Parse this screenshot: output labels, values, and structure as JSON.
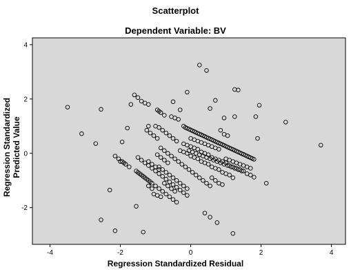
{
  "chart_data": {
    "type": "scatter",
    "title": "Scatterplot",
    "subtitle": "Dependent Variable: BV",
    "xlabel": "Regression Standardized Residual",
    "ylabel": "Regression Standardized Predicted Value",
    "xlim": [
      -4.5,
      4.4
    ],
    "ylim": [
      -3.35,
      4.25
    ],
    "xticks": [
      -4,
      -2,
      0,
      2,
      4
    ],
    "yticks": [
      4,
      2,
      0,
      -2
    ],
    "grid": false,
    "colors": {
      "plot_bg": "#d8d8d8",
      "marker": "#000000"
    },
    "marker": "open-circle",
    "points": [
      [
        -3.5,
        1.7
      ],
      [
        -3.1,
        0.72
      ],
      [
        -2.7,
        0.36
      ],
      [
        -2.55,
        1.62
      ],
      [
        -2.55,
        -2.45
      ],
      [
        -2.3,
        -1.35
      ],
      [
        -2.15,
        -2.85
      ],
      [
        -1.8,
        0.93
      ],
      [
        -1.55,
        -1.95
      ],
      [
        -1.35,
        -2.9
      ],
      [
        -1.5,
        2.05
      ],
      [
        -0.9,
        1.55
      ],
      [
        -0.5,
        1.9
      ],
      [
        0.25,
        3.25
      ],
      [
        0.45,
        3.05
      ],
      [
        -0.1,
        2.25
      ],
      [
        0.55,
        1.65
      ],
      [
        1.25,
        2.35
      ],
      [
        1.35,
        2.33
      ],
      [
        1.25,
        1.35
      ],
      [
        1.85,
        1.35
      ],
      [
        1.95,
        1.77
      ],
      [
        1.9,
        0.55
      ],
      [
        2.15,
        -1.1
      ],
      [
        2.7,
        1.15
      ],
      [
        3.7,
        0.3
      ],
      [
        1.2,
        -2.95
      ],
      [
        0.7,
        1.95
      ],
      [
        0.95,
        1.3
      ],
      [
        0.85,
        0.85
      ],
      [
        0.4,
        -2.2
      ],
      [
        0.55,
        -2.35
      ],
      [
        0.75,
        -2.55
      ],
      [
        -1.95,
        0.42
      ],
      [
        -0.3,
        1.6
      ],
      [
        -0.2,
        1.0
      ],
      [
        -0.15,
        0.95
      ],
      [
        -0.1,
        0.92
      ],
      [
        -0.05,
        0.89
      ],
      [
        0.0,
        0.86
      ],
      [
        0.05,
        0.83
      ],
      [
        0.1,
        0.8
      ],
      [
        0.15,
        0.77
      ],
      [
        0.2,
        0.74
      ],
      [
        0.25,
        0.71
      ],
      [
        0.3,
        0.68
      ],
      [
        0.35,
        0.65
      ],
      [
        0.4,
        0.62
      ],
      [
        0.45,
        0.59
      ],
      [
        0.5,
        0.56
      ],
      [
        0.55,
        0.53
      ],
      [
        0.6,
        0.5
      ],
      [
        0.65,
        0.47
      ],
      [
        0.7,
        0.44
      ],
      [
        0.75,
        0.41
      ],
      [
        0.8,
        0.38
      ],
      [
        0.85,
        0.35
      ],
      [
        0.9,
        0.32
      ],
      [
        0.95,
        0.29
      ],
      [
        1.0,
        0.26
      ],
      [
        1.05,
        0.23
      ],
      [
        1.1,
        0.2
      ],
      [
        1.15,
        0.17
      ],
      [
        1.2,
        0.14
      ],
      [
        1.25,
        0.11
      ],
      [
        1.3,
        0.08
      ],
      [
        1.35,
        0.05
      ],
      [
        1.4,
        0.02
      ],
      [
        1.45,
        -0.01
      ],
      [
        1.5,
        -0.04
      ],
      [
        1.55,
        -0.07
      ],
      [
        1.6,
        -0.1
      ],
      [
        1.65,
        -0.13
      ],
      [
        1.7,
        -0.16
      ],
      [
        1.75,
        -0.19
      ],
      [
        1.8,
        -0.22
      ],
      [
        -0.55,
        1.35
      ],
      [
        -0.45,
        1.3
      ],
      [
        -0.35,
        1.25
      ],
      [
        0.0,
        0.55
      ],
      [
        0.1,
        0.5
      ],
      [
        0.2,
        0.45
      ],
      [
        0.3,
        0.4
      ],
      [
        0.4,
        0.35
      ],
      [
        0.5,
        0.3
      ],
      [
        0.6,
        0.25
      ],
      [
        0.7,
        0.2
      ],
      [
        0.8,
        0.15
      ],
      [
        -1.0,
        1.0
      ],
      [
        -0.9,
        0.95
      ],
      [
        -0.8,
        0.85
      ],
      [
        -0.7,
        0.75
      ],
      [
        -0.6,
        0.65
      ],
      [
        -0.5,
        0.55
      ],
      [
        -0.4,
        0.45
      ],
      [
        -1.6,
        2.15
      ],
      [
        -1.4,
        1.92
      ],
      [
        -1.3,
        1.85
      ],
      [
        -1.2,
        1.8
      ],
      [
        -0.95,
        1.6
      ],
      [
        -0.85,
        1.5
      ],
      [
        -0.75,
        1.4
      ],
      [
        -0.2,
        0.35
      ],
      [
        -0.1,
        0.3
      ],
      [
        0.0,
        0.25
      ],
      [
        0.1,
        0.2
      ],
      [
        0.2,
        0.15
      ],
      [
        0.3,
        0.05
      ],
      [
        0.4,
        0.0
      ],
      [
        0.5,
        -0.05
      ],
      [
        0.6,
        -0.15
      ],
      [
        0.7,
        -0.2
      ],
      [
        0.8,
        -0.25
      ],
      [
        0.9,
        -0.3
      ],
      [
        1.0,
        -0.35
      ],
      [
        1.1,
        -0.45
      ],
      [
        1.2,
        -0.5
      ],
      [
        1.3,
        -0.55
      ],
      [
        1.4,
        -0.6
      ],
      [
        1.5,
        -0.65
      ],
      [
        1.6,
        -0.75
      ],
      [
        1.7,
        -0.8
      ],
      [
        1.8,
        -0.88
      ],
      [
        -0.85,
        0.2
      ],
      [
        -0.75,
        0.1
      ],
      [
        -0.65,
        0.0
      ],
      [
        -0.55,
        -0.1
      ],
      [
        -0.45,
        -0.2
      ],
      [
        -0.35,
        -0.3
      ],
      [
        -0.25,
        -0.4
      ],
      [
        -0.15,
        -0.5
      ],
      [
        -0.05,
        -0.6
      ],
      [
        0.05,
        -0.7
      ],
      [
        0.15,
        -0.8
      ],
      [
        0.25,
        -0.9
      ],
      [
        0.35,
        -1.0
      ],
      [
        0.45,
        -1.1
      ],
      [
        0.55,
        -1.2
      ],
      [
        -0.3,
        0.1
      ],
      [
        -0.2,
        0.05
      ],
      [
        -0.1,
        0.0
      ],
      [
        0.0,
        -0.1
      ],
      [
        0.1,
        -0.15
      ],
      [
        0.2,
        -0.2
      ],
      [
        0.3,
        -0.3
      ],
      [
        0.4,
        -0.35
      ],
      [
        0.5,
        -0.4
      ],
      [
        0.6,
        -0.5
      ],
      [
        0.7,
        -0.55
      ],
      [
        0.8,
        -0.6
      ],
      [
        0.9,
        -0.7
      ],
      [
        1.0,
        -0.75
      ],
      [
        1.1,
        -0.8
      ],
      [
        1.2,
        -0.9
      ],
      [
        -1.5,
        -0.15
      ],
      [
        -1.4,
        -0.25
      ],
      [
        -1.3,
        -0.35
      ],
      [
        -1.2,
        -0.45
      ],
      [
        -1.1,
        -0.55
      ],
      [
        -1.0,
        -0.65
      ],
      [
        -0.9,
        -0.75
      ],
      [
        -0.8,
        -0.85
      ],
      [
        -0.7,
        -0.95
      ],
      [
        -0.6,
        -1.05
      ],
      [
        -0.5,
        -1.15
      ],
      [
        -0.4,
        -1.25
      ],
      [
        -0.3,
        -1.35
      ],
      [
        -0.2,
        -1.45
      ],
      [
        -0.1,
        -1.55
      ],
      [
        -0.9,
        -0.5
      ],
      [
        -0.8,
        -0.6
      ],
      [
        -0.7,
        -0.7
      ],
      [
        -0.6,
        -0.8
      ],
      [
        -0.5,
        -0.9
      ],
      [
        -0.4,
        -1.0
      ],
      [
        -0.3,
        -1.1
      ],
      [
        -0.2,
        -1.2
      ],
      [
        -0.1,
        -1.3
      ],
      [
        -0.95,
        -0.05
      ],
      [
        -0.85,
        -0.15
      ],
      [
        -0.75,
        -0.25
      ],
      [
        -0.65,
        -0.35
      ],
      [
        -2.15,
        -0.1
      ],
      [
        -2.05,
        -0.2
      ],
      [
        -1.95,
        -0.3
      ],
      [
        -1.85,
        -0.4
      ],
      [
        -1.75,
        -0.5
      ],
      [
        -1.5,
        -0.7
      ],
      [
        -1.4,
        -0.8
      ],
      [
        -1.3,
        -0.9
      ],
      [
        -1.2,
        -1.0
      ],
      [
        -1.1,
        -1.1
      ],
      [
        -1.0,
        -1.2
      ],
      [
        -0.9,
        -1.3
      ],
      [
        -0.8,
        -1.4
      ],
      [
        -0.7,
        -1.5
      ],
      [
        -0.6,
        -1.6
      ],
      [
        -0.5,
        -1.7
      ],
      [
        -0.4,
        -1.8
      ],
      [
        -1.05,
        -1.5
      ],
      [
        -0.95,
        -1.55
      ],
      [
        -0.85,
        -1.6
      ],
      [
        -1.2,
        -1.2
      ],
      [
        -1.1,
        -1.3
      ],
      [
        -2.0,
        -0.3
      ],
      [
        -1.9,
        -0.35
      ],
      [
        -1.2,
        -0.3
      ],
      [
        -1.1,
        -0.4
      ],
      [
        -1.0,
        -0.5
      ],
      [
        -0.9,
        -0.6
      ],
      [
        -1.55,
        -0.65
      ],
      [
        -1.45,
        -0.75
      ],
      [
        -1.35,
        -0.85
      ],
      [
        -1.25,
        -0.95
      ],
      [
        -1.15,
        -1.05
      ],
      [
        -0.75,
        -1.1
      ],
      [
        -0.65,
        -1.2
      ],
      [
        -0.55,
        -1.3
      ],
      [
        -0.45,
        -1.4
      ],
      [
        0.6,
        -0.9
      ],
      [
        0.7,
        -1.0
      ],
      [
        0.8,
        -1.1
      ],
      [
        0.9,
        -1.15
      ],
      [
        -1.25,
        0.85
      ],
      [
        -1.15,
        0.75
      ],
      [
        -1.05,
        0.65
      ],
      [
        -0.95,
        0.55
      ],
      [
        0.95,
        0.7
      ],
      [
        1.05,
        0.65
      ],
      [
        -1.7,
        1.8
      ],
      [
        -1.2,
        1.0
      ],
      [
        1.0,
        -0.2
      ],
      [
        1.1,
        -0.25
      ],
      [
        1.2,
        -0.3
      ],
      [
        1.3,
        -0.35
      ],
      [
        1.4,
        -0.4
      ],
      [
        1.5,
        -0.45
      ],
      [
        1.6,
        -0.5
      ],
      [
        1.7,
        -0.55
      ],
      [
        -0.05,
        0.1
      ],
      [
        0.05,
        0.05
      ],
      [
        0.15,
        0.0
      ],
      [
        0.25,
        -0.05
      ],
      [
        0.35,
        -0.1
      ],
      [
        0.45,
        -0.15
      ],
      [
        0.55,
        -0.2
      ],
      [
        0.65,
        -0.25
      ],
      [
        0.75,
        -0.3
      ],
      [
        0.85,
        -0.35
      ],
      [
        0.95,
        -0.4
      ],
      [
        1.05,
        -0.45
      ],
      [
        1.15,
        -0.5
      ],
      [
        1.25,
        -0.55
      ],
      [
        1.35,
        -0.6
      ],
      [
        1.45,
        -0.65
      ]
    ]
  }
}
